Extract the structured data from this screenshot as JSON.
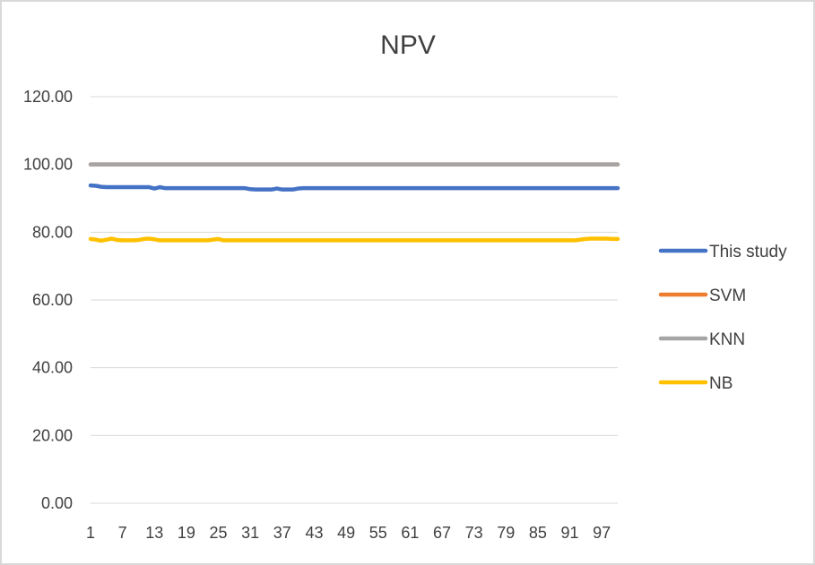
{
  "chart_data": {
    "type": "line",
    "title": "NPV",
    "xlabel": "",
    "ylabel": "",
    "x": [
      1,
      2,
      3,
      4,
      5,
      6,
      7,
      8,
      9,
      10,
      11,
      12,
      13,
      14,
      15,
      16,
      17,
      18,
      19,
      20,
      21,
      22,
      23,
      24,
      25,
      26,
      27,
      28,
      29,
      30,
      31,
      32,
      33,
      34,
      35,
      36,
      37,
      38,
      39,
      40,
      41,
      42,
      43,
      44,
      45,
      46,
      47,
      48,
      49,
      50,
      51,
      52,
      53,
      54,
      55,
      56,
      57,
      58,
      59,
      60,
      61,
      62,
      63,
      64,
      65,
      66,
      67,
      68,
      69,
      70,
      71,
      72,
      73,
      74,
      75,
      76,
      77,
      78,
      79,
      80,
      81,
      82,
      83,
      84,
      85,
      86,
      87,
      88,
      89,
      90,
      91,
      92,
      93,
      94,
      95,
      96,
      97,
      98,
      99,
      100
    ],
    "x_tick_labels": [
      "1",
      "7",
      "13",
      "19",
      "25",
      "31",
      "37",
      "43",
      "49",
      "55",
      "61",
      "67",
      "73",
      "79",
      "85",
      "91",
      "97"
    ],
    "y_tick_labels": [
      "0.00",
      "20.00",
      "40.00",
      "60.00",
      "80.00",
      "100.00",
      "120.00"
    ],
    "ylim": [
      0,
      120
    ],
    "grid": true,
    "legend_position": "right",
    "series": [
      {
        "name": "This study",
        "color": "#4472c4",
        "values": [
          93.8,
          93.7,
          93.4,
          93.3,
          93.3,
          93.3,
          93.3,
          93.3,
          93.3,
          93.3,
          93.3,
          93.3,
          92.9,
          93.3,
          93.0,
          93.0,
          93.0,
          93.0,
          93.0,
          93.0,
          93.0,
          93.0,
          93.0,
          93.0,
          93.0,
          93.0,
          93.0,
          93.0,
          93.0,
          93.0,
          92.7,
          92.6,
          92.6,
          92.6,
          92.6,
          92.9,
          92.6,
          92.6,
          92.6,
          92.9,
          93.0,
          93.0,
          93.0,
          93.0,
          93.0,
          93.0,
          93.0,
          93.0,
          93.0,
          93.0,
          93.0,
          93.0,
          93.0,
          93.0,
          93.0,
          93.0,
          93.0,
          93.0,
          93.0,
          93.0,
          93.0,
          93.0,
          93.0,
          93.0,
          93.0,
          93.0,
          93.0,
          93.0,
          93.0,
          93.0,
          93.0,
          93.0,
          93.0,
          93.0,
          93.0,
          93.0,
          93.0,
          93.0,
          93.0,
          93.0,
          93.0,
          93.0,
          93.0,
          93.0,
          93.0,
          93.0,
          93.0,
          93.0,
          93.0,
          93.0,
          93.0,
          93.0,
          93.0,
          93.0,
          93.0,
          93.0,
          93.0,
          93.0,
          93.0,
          93.0
        ]
      },
      {
        "name": "SVM",
        "color": "#ed7d31",
        "values": [
          100,
          100,
          100,
          100,
          100,
          100,
          100,
          100,
          100,
          100,
          100,
          100,
          100,
          100,
          100,
          100,
          100,
          100,
          100,
          100,
          100,
          100,
          100,
          100,
          100,
          100,
          100,
          100,
          100,
          100,
          100,
          100,
          100,
          100,
          100,
          100,
          100,
          100,
          100,
          100,
          100,
          100,
          100,
          100,
          100,
          100,
          100,
          100,
          100,
          100,
          100,
          100,
          100,
          100,
          100,
          100,
          100,
          100,
          100,
          100,
          100,
          100,
          100,
          100,
          100,
          100,
          100,
          100,
          100,
          100,
          100,
          100,
          100,
          100,
          100,
          100,
          100,
          100,
          100,
          100,
          100,
          100,
          100,
          100,
          100,
          100,
          100,
          100,
          100,
          100,
          100,
          100,
          100,
          100,
          100,
          100,
          100,
          100,
          100,
          100
        ]
      },
      {
        "name": "KNN",
        "color": "#a5a5a5",
        "values": [
          100,
          100,
          100,
          100,
          100,
          100,
          100,
          100,
          100,
          100,
          100,
          100,
          100,
          100,
          100,
          100,
          100,
          100,
          100,
          100,
          100,
          100,
          100,
          100,
          100,
          100,
          100,
          100,
          100,
          100,
          100,
          100,
          100,
          100,
          100,
          100,
          100,
          100,
          100,
          100,
          100,
          100,
          100,
          100,
          100,
          100,
          100,
          100,
          100,
          100,
          100,
          100,
          100,
          100,
          100,
          100,
          100,
          100,
          100,
          100,
          100,
          100,
          100,
          100,
          100,
          100,
          100,
          100,
          100,
          100,
          100,
          100,
          100,
          100,
          100,
          100,
          100,
          100,
          100,
          100,
          100,
          100,
          100,
          100,
          100,
          100,
          100,
          100,
          100,
          100,
          100,
          100,
          100,
          100,
          100,
          100,
          100,
          100,
          100,
          100
        ]
      },
      {
        "name": "NB",
        "color": "#ffc000",
        "values": [
          78.0,
          77.8,
          77.5,
          77.8,
          78.1,
          77.7,
          77.6,
          77.6,
          77.6,
          77.7,
          78.0,
          78.1,
          77.9,
          77.6,
          77.6,
          77.6,
          77.6,
          77.6,
          77.6,
          77.6,
          77.6,
          77.6,
          77.6,
          77.8,
          78.0,
          77.6,
          77.6,
          77.6,
          77.6,
          77.6,
          77.6,
          77.6,
          77.6,
          77.6,
          77.6,
          77.6,
          77.6,
          77.6,
          77.6,
          77.6,
          77.6,
          77.6,
          77.6,
          77.6,
          77.6,
          77.6,
          77.6,
          77.6,
          77.6,
          77.6,
          77.6,
          77.6,
          77.6,
          77.6,
          77.6,
          77.6,
          77.6,
          77.6,
          77.6,
          77.6,
          77.6,
          77.6,
          77.6,
          77.6,
          77.6,
          77.6,
          77.6,
          77.6,
          77.6,
          77.6,
          77.6,
          77.6,
          77.6,
          77.6,
          77.6,
          77.6,
          77.6,
          77.6,
          77.6,
          77.6,
          77.6,
          77.6,
          77.6,
          77.6,
          77.6,
          77.6,
          77.6,
          77.6,
          77.6,
          77.6,
          77.6,
          77.6,
          77.8,
          78.0,
          78.1,
          78.1,
          78.1,
          78.1,
          78.0,
          78.0
        ]
      }
    ]
  }
}
